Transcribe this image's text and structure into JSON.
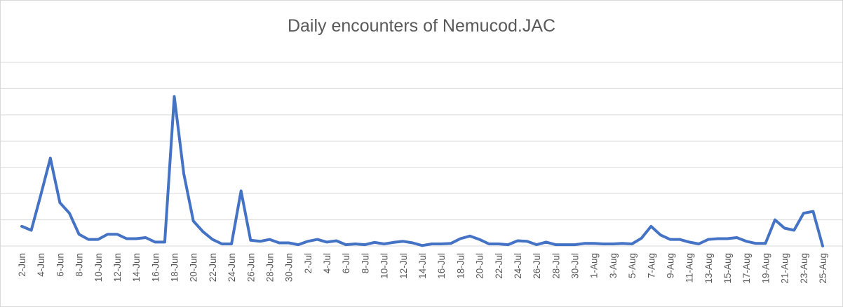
{
  "chart_data": {
    "type": "line",
    "title": "Daily encounters of Nemucod.JAC",
    "xlabel": "",
    "ylabel": "",
    "grid": true,
    "legend": "none",
    "colors": {
      "line": "#4472c4",
      "grid": "#d9d9d9",
      "text": "#595959"
    },
    "x_tick_labels": [
      "2-Jun",
      "4-Jun",
      "6-Jun",
      "8-Jun",
      "10-Jun",
      "12-Jun",
      "14-Jun",
      "16-Jun",
      "18-Jun",
      "20-Jun",
      "22-Jun",
      "24-Jun",
      "26-Jun",
      "28-Jun",
      "30-Jun",
      "2-Jul",
      "4-Jul",
      "6-Jul",
      "8-Jul",
      "10-Jul",
      "12-Jul",
      "14-Jul",
      "16-Jul",
      "18-Jul",
      "20-Jul",
      "22-Jul",
      "24-Jul",
      "26-Jul",
      "28-Jul",
      "30-Jul",
      "1-Aug",
      "3-Aug",
      "5-Aug",
      "7-Aug",
      "9-Aug",
      "11-Aug",
      "13-Aug",
      "15-Aug",
      "17-Aug",
      "19-Aug",
      "21-Aug",
      "23-Aug",
      "25-Aug"
    ],
    "series": [
      {
        "values": [
          0.75,
          0.6,
          1.95,
          3.35,
          1.65,
          1.25,
          0.45,
          0.25,
          0.25,
          0.45,
          0.45,
          0.28,
          0.28,
          0.32,
          0.15,
          0.15,
          5.7,
          2.75,
          0.95,
          0.55,
          0.25,
          0.08,
          0.08,
          2.1,
          0.22,
          0.18,
          0.25,
          0.12,
          0.12,
          0.05,
          0.18,
          0.25,
          0.15,
          0.2,
          0.05,
          0.08,
          0.05,
          0.14,
          0.08,
          0.14,
          0.18,
          0.12,
          0.02,
          0.08,
          0.08,
          0.1,
          0.28,
          0.38,
          0.25,
          0.08,
          0.08,
          0.05,
          0.2,
          0.18,
          0.05,
          0.15,
          0.05,
          0.05,
          0.05,
          0.1,
          0.1,
          0.08,
          0.08,
          0.1,
          0.08,
          0.3,
          0.75,
          0.42,
          0.25,
          0.25,
          0.15,
          0.08,
          0.25,
          0.28,
          0.28,
          0.32,
          0.18,
          0.1,
          0.1,
          1.0,
          0.68,
          0.6,
          1.25,
          1.32,
          0.0
        ]
      }
    ],
    "ylim": [
      0,
      7
    ],
    "gridline_count": 7
  }
}
